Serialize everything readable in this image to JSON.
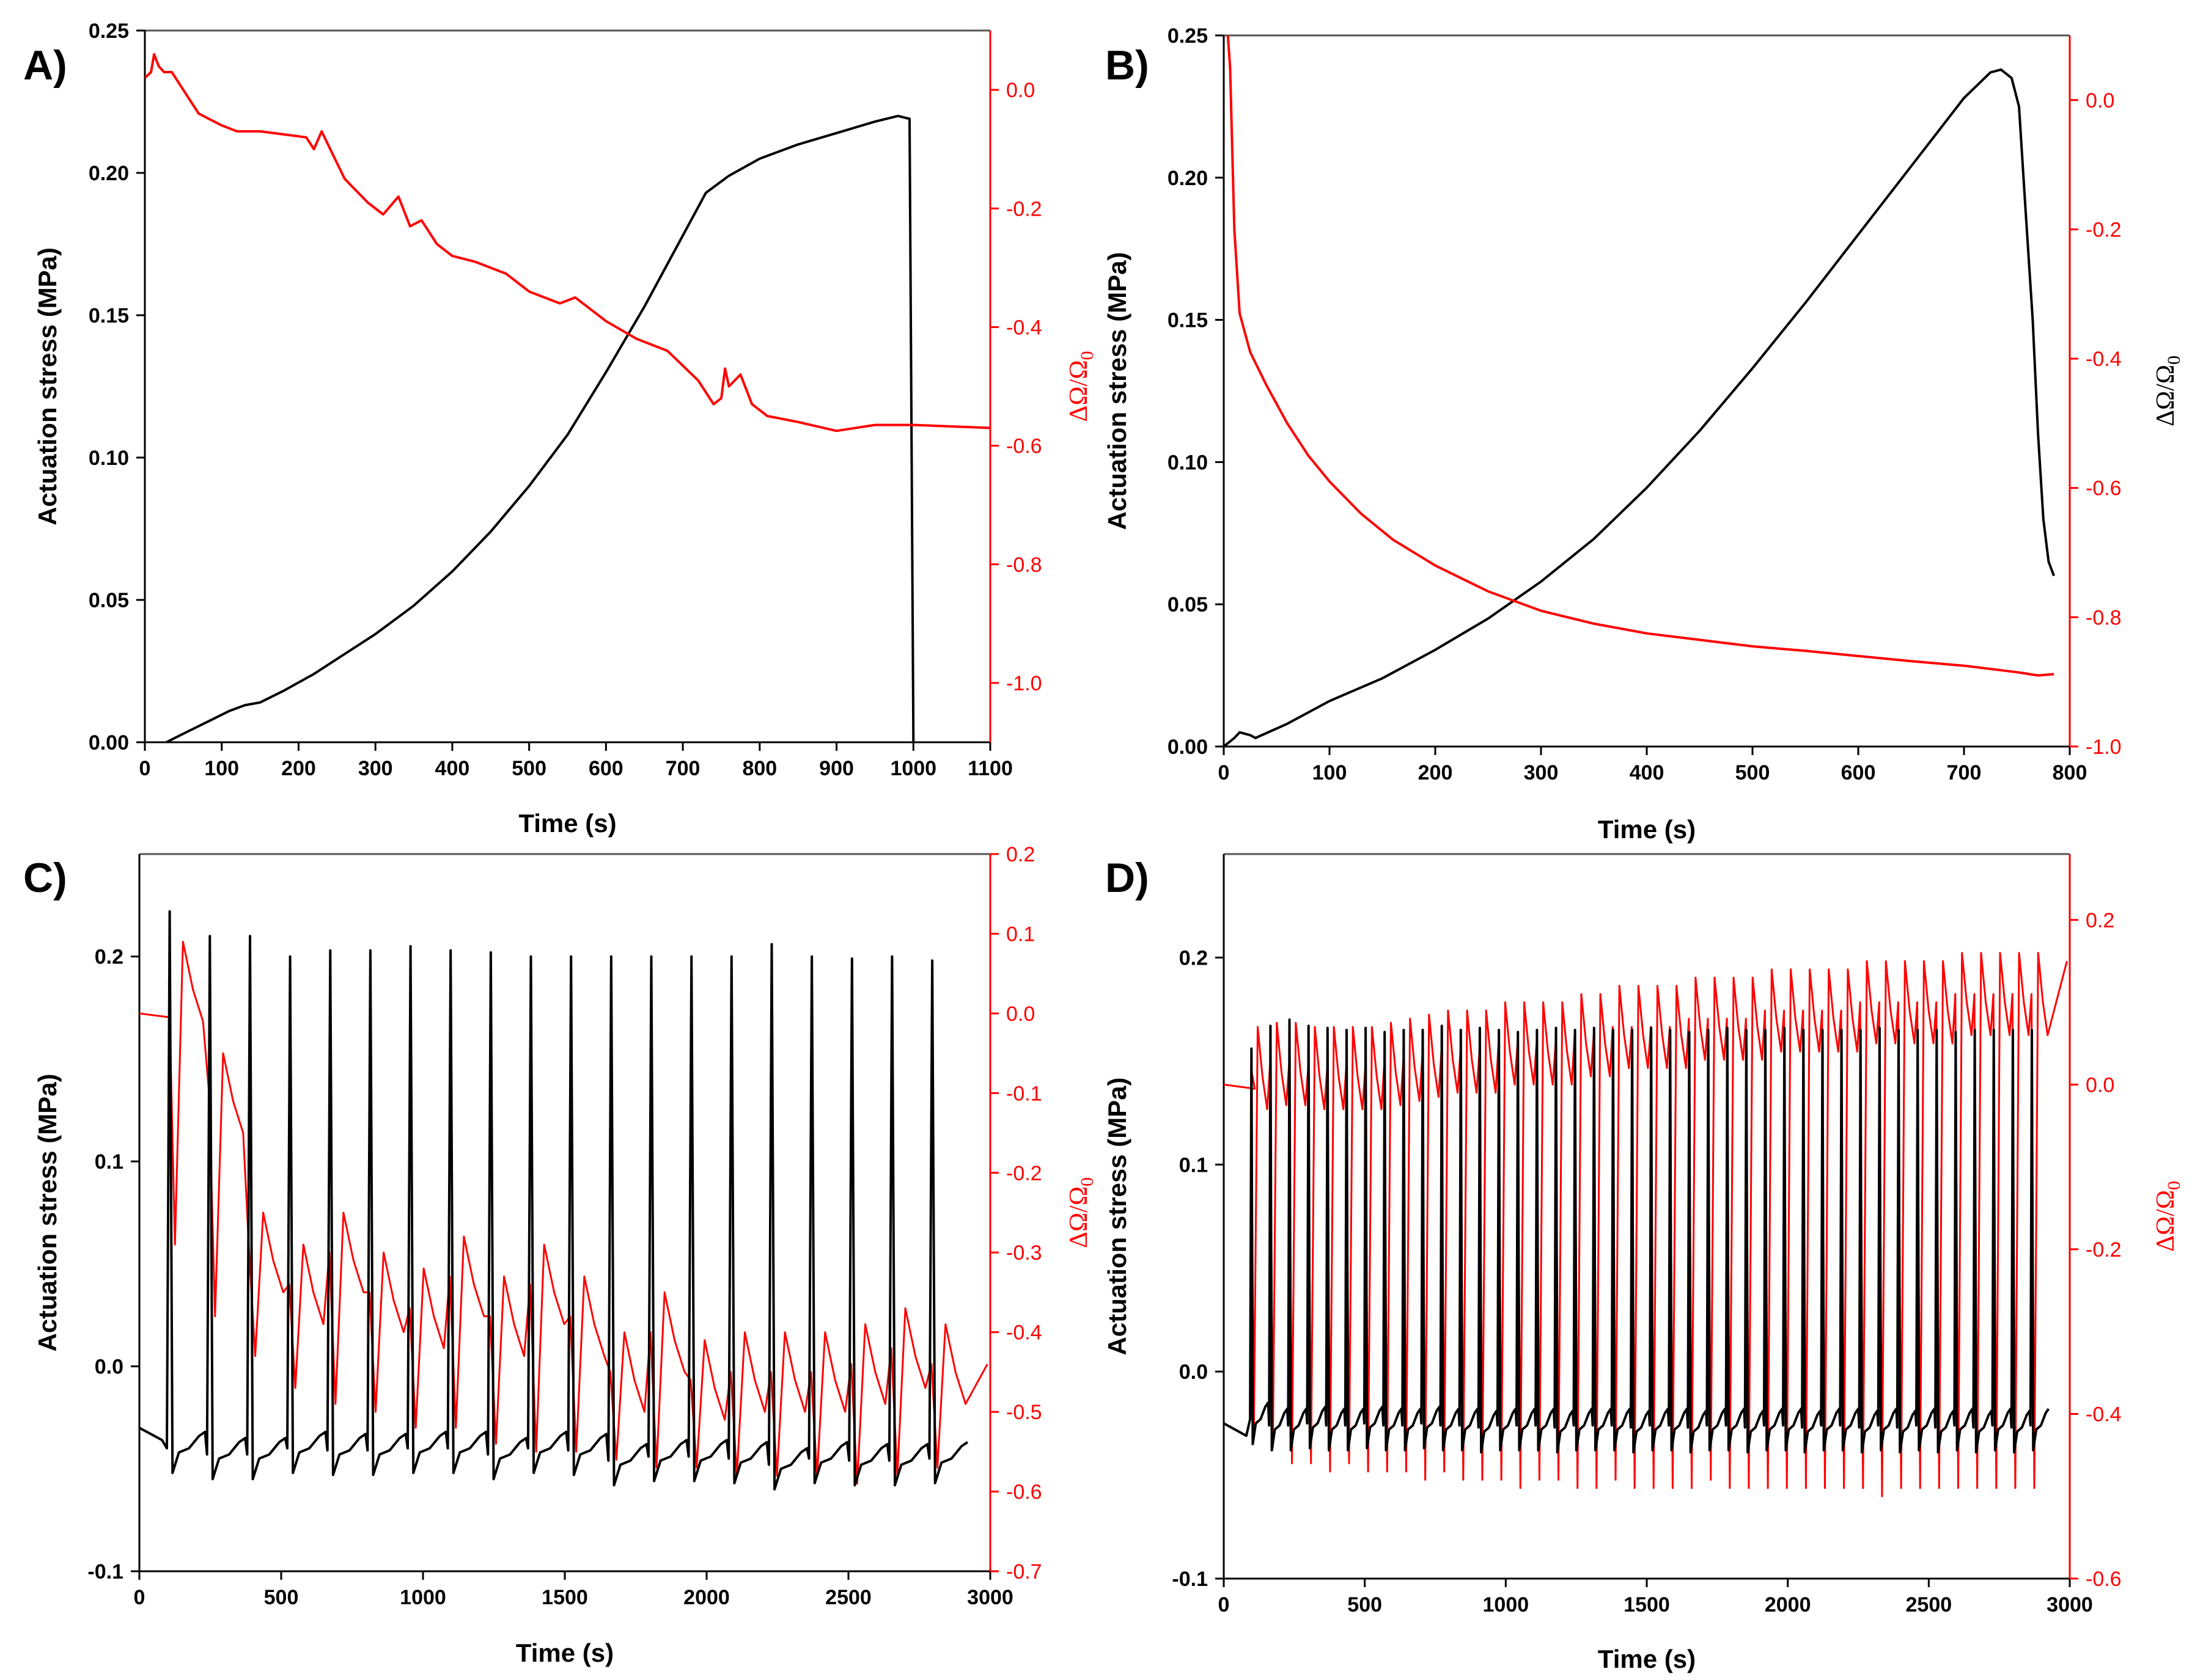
{
  "colors": {
    "stress": "#000000",
    "resistance": "#ff0000",
    "frame": "#555555"
  },
  "chart_data": [
    {
      "panel_label": "A)",
      "type": "line",
      "xlabel": "Time (s)",
      "ylabel": "Actuation stress (MPa)",
      "y2label": "ΔΩ/Ω",
      "y2label_sub": "0",
      "y2_label_color": "#ff0000",
      "y2_tick_color": "#ff0000",
      "xlim": [
        0,
        1100
      ],
      "xticks": [
        "0",
        "100",
        "200",
        "300",
        "400",
        "500",
        "600",
        "700",
        "800",
        "900",
        "1000",
        "1100"
      ],
      "ylim": [
        0,
        0.25
      ],
      "yticks": [
        "0.00",
        "0.05",
        "0.10",
        "0.15",
        "0.20",
        "0.25"
      ],
      "y2lim": [
        -1.1,
        0.1
      ],
      "y2ticks": [
        "0.0",
        "-0.2",
        "-0.4",
        "-0.6",
        "-0.8",
        "-1.0"
      ],
      "series": [
        {
          "name": "Actuation stress",
          "axis": "left",
          "color": "#000000",
          "points": [
            [
              28,
              0
            ],
            [
              50,
              0.003
            ],
            [
              80,
              0.007
            ],
            [
              110,
              0.011
            ],
            [
              130,
              0.013
            ],
            [
              150,
              0.014
            ],
            [
              180,
              0.018
            ],
            [
              220,
              0.024
            ],
            [
              260,
              0.031
            ],
            [
              300,
              0.038
            ],
            [
              350,
              0.048
            ],
            [
              400,
              0.06
            ],
            [
              450,
              0.074
            ],
            [
              500,
              0.09
            ],
            [
              550,
              0.108
            ],
            [
              600,
              0.13
            ],
            [
              650,
              0.153
            ],
            [
              700,
              0.178
            ],
            [
              730,
              0.193
            ],
            [
              760,
              0.199
            ],
            [
              800,
              0.205
            ],
            [
              850,
              0.21
            ],
            [
              900,
              0.214
            ],
            [
              950,
              0.218
            ],
            [
              980,
              0.22
            ],
            [
              995,
              0.219
            ],
            [
              1000,
              0
            ]
          ]
        },
        {
          "name": "ΔΩ/Ω0",
          "axis": "right",
          "color": "#ff0000",
          "points": [
            [
              0,
              0.02
            ],
            [
              8,
              0.03
            ],
            [
              12,
              0.06
            ],
            [
              18,
              0.04
            ],
            [
              25,
              0.03
            ],
            [
              35,
              0.03
            ],
            [
              45,
              0.01
            ],
            [
              55,
              -0.01
            ],
            [
              70,
              -0.04
            ],
            [
              85,
              -0.05
            ],
            [
              100,
              -0.06
            ],
            [
              120,
              -0.07
            ],
            [
              150,
              -0.07
            ],
            [
              180,
              -0.075
            ],
            [
              210,
              -0.08
            ],
            [
              220,
              -0.1
            ],
            [
              230,
              -0.07
            ],
            [
              245,
              -0.11
            ],
            [
              260,
              -0.15
            ],
            [
              290,
              -0.19
            ],
            [
              310,
              -0.21
            ],
            [
              330,
              -0.18
            ],
            [
              345,
              -0.23
            ],
            [
              360,
              -0.22
            ],
            [
              380,
              -0.26
            ],
            [
              400,
              -0.28
            ],
            [
              430,
              -0.29
            ],
            [
              470,
              -0.31
            ],
            [
              500,
              -0.34
            ],
            [
              540,
              -0.36
            ],
            [
              560,
              -0.35
            ],
            [
              600,
              -0.39
            ],
            [
              640,
              -0.42
            ],
            [
              680,
              -0.44
            ],
            [
              720,
              -0.49
            ],
            [
              740,
              -0.53
            ],
            [
              750,
              -0.52
            ],
            [
              755,
              -0.47
            ],
            [
              760,
              -0.5
            ],
            [
              775,
              -0.48
            ],
            [
              790,
              -0.53
            ],
            [
              810,
              -0.55
            ],
            [
              850,
              -0.56
            ],
            [
              900,
              -0.575
            ],
            [
              950,
              -0.565
            ],
            [
              1000,
              -0.565
            ],
            [
              1100,
              -0.57
            ]
          ]
        }
      ]
    },
    {
      "panel_label": "B)",
      "type": "line",
      "xlabel": "Time (s)",
      "ylabel": "Actuation stress (MPa)",
      "y2label": "ΔΩ/Ω",
      "y2label_sub": "0",
      "y2_label_color": "#000000",
      "y2_tick_color": "#ff0000",
      "xlim": [
        0,
        800
      ],
      "xticks": [
        "0",
        "100",
        "200",
        "300",
        "400",
        "500",
        "600",
        "700",
        "800"
      ],
      "ylim": [
        0,
        0.25
      ],
      "yticks": [
        "0.00",
        "0.05",
        "0.10",
        "0.15",
        "0.20",
        "0.25"
      ],
      "y2lim": [
        -1.0,
        0.1
      ],
      "y2ticks": [
        "0.0",
        "-0.2",
        "-0.4",
        "-0.6",
        "-0.8",
        "-1.0"
      ],
      "series": [
        {
          "name": "Actuation stress",
          "axis": "left",
          "color": "#000000",
          "points": [
            [
              0,
              0
            ],
            [
              10,
              0.003
            ],
            [
              15,
              0.005
            ],
            [
              25,
              0.004
            ],
            [
              30,
              0.003
            ],
            [
              60,
              0.008
            ],
            [
              100,
              0.016
            ],
            [
              150,
              0.024
            ],
            [
              200,
              0.034
            ],
            [
              250,
              0.045
            ],
            [
              300,
              0.058
            ],
            [
              350,
              0.073
            ],
            [
              400,
              0.091
            ],
            [
              450,
              0.111
            ],
            [
              500,
              0.133
            ],
            [
              550,
              0.156
            ],
            [
              600,
              0.18
            ],
            [
              650,
              0.204
            ],
            [
              700,
              0.228
            ],
            [
              725,
              0.237
            ],
            [
              735,
              0.238
            ],
            [
              745,
              0.235
            ],
            [
              752,
              0.225
            ],
            [
              758,
              0.19
            ],
            [
              765,
              0.15
            ],
            [
              770,
              0.11
            ],
            [
              775,
              0.08
            ],
            [
              780,
              0.065
            ],
            [
              785,
              0.06
            ]
          ]
        },
        {
          "name": "ΔΩ/Ω0",
          "axis": "right",
          "color": "#ff0000",
          "points": [
            [
              0,
              0.1
            ],
            [
              3,
              0.12
            ],
            [
              6,
              0.05
            ],
            [
              10,
              -0.2
            ],
            [
              15,
              -0.33
            ],
            [
              25,
              -0.39
            ],
            [
              40,
              -0.44
            ],
            [
              60,
              -0.5
            ],
            [
              80,
              -0.55
            ],
            [
              100,
              -0.59
            ],
            [
              130,
              -0.64
            ],
            [
              160,
              -0.68
            ],
            [
              200,
              -0.72
            ],
            [
              250,
              -0.76
            ],
            [
              300,
              -0.79
            ],
            [
              350,
              -0.81
            ],
            [
              400,
              -0.825
            ],
            [
              450,
              -0.835
            ],
            [
              500,
              -0.845
            ],
            [
              550,
              -0.852
            ],
            [
              600,
              -0.86
            ],
            [
              650,
              -0.868
            ],
            [
              700,
              -0.875
            ],
            [
              750,
              -0.885
            ],
            [
              770,
              -0.89
            ],
            [
              785,
              -0.888
            ]
          ]
        }
      ]
    },
    {
      "panel_label": "C)",
      "type": "line",
      "xlabel": "Time (s)",
      "ylabel": "Actuation stress (MPa)",
      "y2label": "ΔΩ/Ω",
      "y2label_sub": "0",
      "y2_label_color": "#ff0000",
      "y2_tick_color": "#ff0000",
      "xlim": [
        0,
        3000
      ],
      "xticks": [
        "0",
        "500",
        "1000",
        "1500",
        "2000",
        "2500",
        "3000"
      ],
      "ylim": [
        -0.1,
        0.25
      ],
      "yticks": [
        "-0.1",
        "0.0",
        "0.1",
        "0.2"
      ],
      "ytick_values": [
        -0.1,
        0.0,
        0.1,
        0.2
      ],
      "y2lim": [
        -0.7,
        0.2
      ],
      "y2ticks": [
        "0.2",
        "0.1",
        "0.0",
        "-0.1",
        "-0.2",
        "-0.3",
        "-0.4",
        "-0.5",
        "-0.6",
        "-0.7"
      ],
      "cycles": {
        "start_time": 90,
        "period": 141.5,
        "count": 20,
        "pre_time": 90,
        "pre_stress": -0.03,
        "pre_resistance": 0.0,
        "stress_peaks": [
          0.222,
          0.21,
          0.21,
          0.2,
          0.203,
          0.203,
          0.205,
          0.203,
          0.202,
          0.2,
          0.2,
          0.2,
          0.2,
          0.2,
          0.2,
          0.206,
          0.2,
          0.199,
          0.2,
          0.198
        ],
        "stress_troughs": [
          -0.052,
          -0.055,
          -0.055,
          -0.052,
          -0.053,
          -0.053,
          -0.052,
          -0.052,
          -0.055,
          -0.052,
          -0.053,
          -0.058,
          -0.056,
          -0.056,
          -0.057,
          -0.06,
          -0.057,
          -0.058,
          -0.058,
          -0.057
        ],
        "resistance_peaks": [
          0.09,
          -0.05,
          -0.25,
          -0.29,
          -0.25,
          -0.3,
          -0.32,
          -0.28,
          -0.33,
          -0.29,
          -0.33,
          -0.4,
          -0.35,
          -0.41,
          -0.4,
          -0.4,
          -0.4,
          -0.39,
          -0.37,
          -0.39
        ],
        "resistance_troughs": [
          -0.29,
          -0.38,
          -0.43,
          -0.47,
          -0.49,
          -0.5,
          -0.52,
          -0.52,
          -0.54,
          -0.55,
          -0.55,
          -0.56,
          -0.57,
          -0.57,
          -0.58,
          -0.58,
          -0.58,
          -0.59,
          -0.58,
          -0.57
        ],
        "resistance_end": -0.44
      }
    },
    {
      "panel_label": "D)",
      "type": "line",
      "xlabel": "Time (s)",
      "ylabel": "Actuation stress (MPa)",
      "y2label": "ΔΩ/Ω",
      "y2label_sub": "0",
      "y2_label_color": "#ff0000",
      "y2_tick_color": "#ff0000",
      "xlim": [
        0,
        3000
      ],
      "xticks": [
        "0",
        "500",
        "1000",
        "1500",
        "2000",
        "2500",
        "3000"
      ],
      "ylim": [
        -0.1,
        0.25
      ],
      "yticks": [
        "-0.1",
        "0.0",
        "0.1",
        "0.2"
      ],
      "ytick_values": [
        -0.1,
        0.0,
        0.1,
        0.2
      ],
      "y2lim": [
        -0.6,
        0.28
      ],
      "y2ticks": [
        "0.2",
        "0.0",
        "-0.2",
        "-0.4",
        "-0.6"
      ],
      "cycles": {
        "start_time": 90,
        "period": 67.5,
        "count": 42,
        "pre_time": 90,
        "pre_stress": -0.025,
        "pre_resistance": 0.0,
        "stress_peaks": [
          0.156,
          0.167,
          0.17,
          0.167,
          0.166,
          0.165,
          0.166,
          0.164,
          0.165,
          0.165,
          0.167,
          0.165,
          0.166,
          0.165,
          0.164,
          0.165,
          0.166,
          0.165,
          0.166,
          0.165,
          0.165,
          0.166,
          0.165,
          0.164,
          0.165,
          0.166,
          0.165,
          0.165,
          0.166,
          0.165,
          0.165,
          0.165,
          0.165,
          0.166,
          0.165,
          0.165,
          0.165,
          0.164,
          0.165,
          0.165,
          0.165,
          0.165
        ],
        "stress_troughs": [
          -0.035,
          -0.038,
          -0.038,
          -0.037,
          -0.038,
          -0.038,
          -0.037,
          -0.038,
          -0.038,
          -0.037,
          -0.038,
          -0.038,
          -0.039,
          -0.038,
          -0.038,
          -0.038,
          -0.039,
          -0.038,
          -0.038,
          -0.038,
          -0.039,
          -0.038,
          -0.038,
          -0.039,
          -0.038,
          -0.038,
          -0.039,
          -0.038,
          -0.038,
          -0.039,
          -0.038,
          -0.038,
          -0.039,
          -0.038,
          -0.039,
          -0.038,
          -0.039,
          -0.038,
          -0.039,
          -0.038,
          -0.039,
          -0.038
        ],
        "resistance_peaks": [
          0.07,
          0.075,
          0.075,
          0.07,
          0.07,
          0.07,
          0.07,
          0.075,
          0.08,
          0.085,
          0.09,
          0.09,
          0.09,
          0.1,
          0.1,
          0.1,
          0.1,
          0.11,
          0.11,
          0.12,
          0.12,
          0.12,
          0.12,
          0.13,
          0.13,
          0.13,
          0.13,
          0.14,
          0.14,
          0.14,
          0.14,
          0.14,
          0.15,
          0.15,
          0.15,
          0.15,
          0.15,
          0.16,
          0.16,
          0.16,
          0.16,
          0.16
        ],
        "resistance_troughs": [
          -0.42,
          -0.44,
          -0.46,
          -0.46,
          -0.47,
          -0.46,
          -0.47,
          -0.47,
          -0.47,
          -0.48,
          -0.47,
          -0.48,
          -0.48,
          -0.48,
          -0.49,
          -0.48,
          -0.48,
          -0.49,
          -0.49,
          -0.48,
          -0.49,
          -0.49,
          -0.49,
          -0.49,
          -0.48,
          -0.49,
          -0.49,
          -0.49,
          -0.49,
          -0.49,
          -0.49,
          -0.49,
          -0.49,
          -0.5,
          -0.49,
          -0.49,
          -0.49,
          -0.49,
          -0.49,
          -0.49,
          -0.49,
          -0.49
        ],
        "resistance_end": 0.15
      }
    }
  ]
}
